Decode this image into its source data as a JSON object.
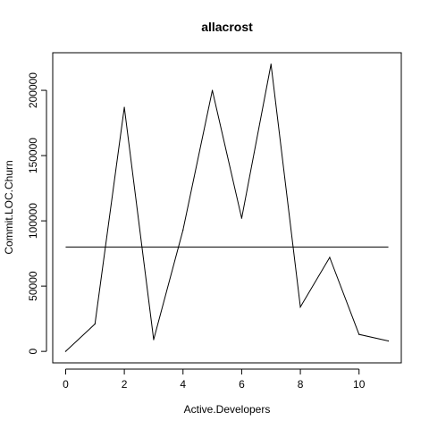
{
  "chart_data": {
    "type": "line",
    "title": "allacrost",
    "xlabel": "Active.Developers",
    "ylabel": "Commit.LOC.Churn",
    "x": [
      0,
      1,
      2,
      3,
      4,
      5,
      6,
      7,
      8,
      9,
      10,
      11
    ],
    "series": [
      {
        "values": [
          0,
          21000,
          187000,
          9000,
          93000,
          200000,
          102000,
          220000,
          34000,
          72000,
          13000,
          8000
        ]
      }
    ],
    "reference_line": {
      "y": 80000
    },
    "xlim": [
      -0.44,
      11.44
    ],
    "ylim": [
      -8800,
      228800
    ],
    "x_ticks": [
      0,
      2,
      4,
      6,
      8,
      10
    ],
    "y_ticks": [
      0,
      50000,
      100000,
      150000,
      200000
    ],
    "grid": false,
    "legend": "none",
    "colors": {
      "line": "#000000",
      "axes": "#000000",
      "background": "#ffffff"
    }
  }
}
